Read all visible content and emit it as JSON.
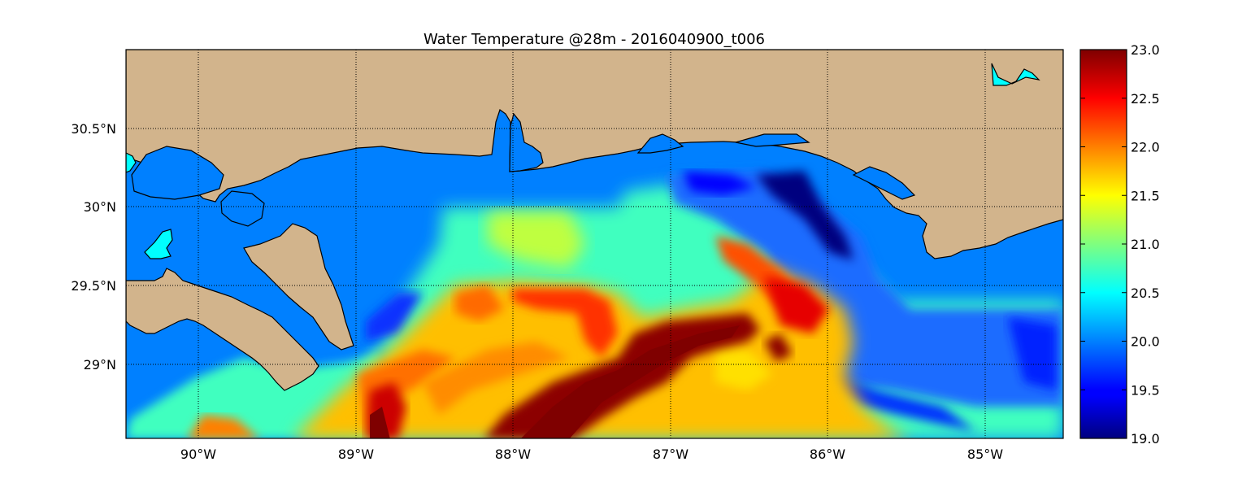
{
  "title": "Water Temperature @28m - 2016040900_t006",
  "map": {
    "lon_range": [
      -90.5,
      -84.5
    ],
    "lat_range": [
      28.55,
      31.0
    ],
    "lon_ticks": [
      "90°W",
      "89°W",
      "88°W",
      "87°W",
      "86°W",
      "85°W"
    ],
    "lat_ticks": [
      "30.5°N",
      "30°N",
      "29.5°N",
      "29°N"
    ],
    "grid": "dotted",
    "land_color": "#d2b48c",
    "nodata_water_color": "#0080ff",
    "lake_color": "#00ffff"
  },
  "colorbar": {
    "range": [
      19.0,
      23.0
    ],
    "ticks": [
      "23.0",
      "22.5",
      "22.0",
      "21.5",
      "21.0",
      "20.5",
      "20.0",
      "19.5",
      "19.0"
    ],
    "colormap": "jet"
  }
}
